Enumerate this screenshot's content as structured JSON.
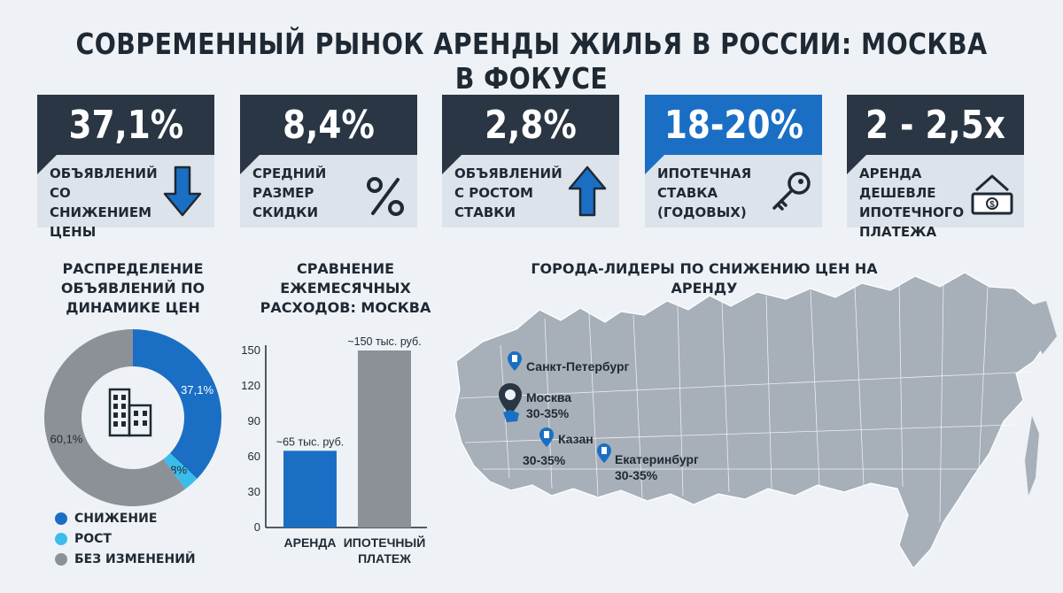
{
  "title": "СОВРЕМЕННЫЙ РЫНОК АРЕНДЫ ЖИЛЬЯ В РОССИИ: МОСКВА В ФОКУСЕ",
  "cards": [
    {
      "value": "37,1%",
      "label": "ОБЪЯВЛЕНИЙ СО СНИЖЕНИЕМ ЦЕНЫ",
      "icon": "arrow-down-icon",
      "highlight": false
    },
    {
      "value": "8,4%",
      "label": "СРЕДНИЙ РАЗМЕР СКИДКИ",
      "icon": "percent-icon",
      "highlight": false
    },
    {
      "value": "2,8%",
      "label": "ОБЪЯВЛЕНИЙ С РОСТОМ СТАВКИ",
      "icon": "arrow-up-icon",
      "highlight": false
    },
    {
      "value": "18-20%",
      "label": "ИПОТЕЧНАЯ СТАВКА (ГОДОВЫХ)",
      "icon": "key-icon",
      "highlight": true
    },
    {
      "value": "2 - 2,5x",
      "label": "АРЕНДА ДЕШЕВЛЕ ИПОТЕЧНОГО ПЛАТЕЖА",
      "icon": "house-money-icon",
      "highlight": false
    }
  ],
  "donut": {
    "title": "РАСПРЕДЕЛЕНИЕ ОБЪЯВЛЕНИЙ ПО ДИНАМИКЕ ЦЕН",
    "legend": [
      "СНИЖЕНИЕ",
      "РОСТ",
      "БЕЗ ИЗМЕНЕНИЙ"
    ]
  },
  "bars": {
    "title": "СРАВНЕНИЕ ЕЖЕМЕСЯЧНЫХ РАСХОДОВ: МОСКВА"
  },
  "map": {
    "title": "ГОРОДА-ЛИДЕРЫ ПО СНИЖЕНИЮ ЦЕН НА АРЕНДУ",
    "cities": [
      {
        "name": "Санкт-Петербург",
        "range": ""
      },
      {
        "name": "Москва",
        "range": "30-35%"
      },
      {
        "name": "Казан",
        "range": "30-35%"
      },
      {
        "name": "Екатеринбург",
        "range": "30-35%"
      }
    ]
  },
  "colors": {
    "dark": "#2a3644",
    "blue": "#1a6fc4",
    "light_blue": "#3bbdeb",
    "gray": "#8c9198"
  },
  "chart_data": [
    {
      "type": "pie",
      "title": "РАСПРЕДЕЛЕНИЕ ОБЪЯВЛЕНИЙ ПО ДИНАМИКЕ ЦЕН",
      "categories": [
        "СНИЖЕНИЕ",
        "РОСТ",
        "БЕЗ ИЗМЕНЕНИЙ"
      ],
      "values": [
        37.1,
        2.8,
        60.1
      ],
      "labels": [
        "37,1%",
        "2,8%",
        "60,1%"
      ],
      "colors": [
        "#1a6fc4",
        "#3bbdeb",
        "#8c9198"
      ]
    },
    {
      "type": "bar",
      "title": "СРАВНЕНИЕ ЕЖЕМЕСЯЧНЫХ РАСХОДОВ: МОСКВА",
      "categories": [
        "АРЕНДА",
        "ИПОТЕЧНЫЙ ПЛАТЕЖ"
      ],
      "values": [
        65,
        150
      ],
      "data_labels": [
        "~65 тыс. руб.",
        "~150 тыс. руб."
      ],
      "colors": [
        "#1a6fc4",
        "#8c9198"
      ],
      "yticks": [
        0,
        30,
        60,
        90,
        120,
        150
      ],
      "ylim": [
        0,
        150
      ]
    }
  ]
}
